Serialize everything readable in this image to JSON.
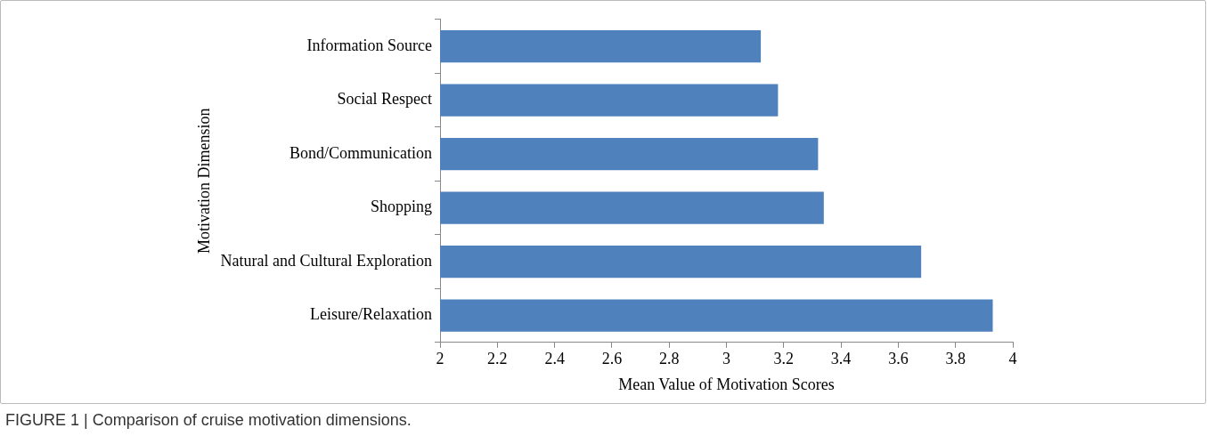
{
  "chart_data": {
    "type": "bar",
    "orientation": "horizontal",
    "xlabel": "Mean Value of Motivation Scores",
    "ylabel": "Motivation Dimension",
    "categories": [
      "Information Source",
      "Social Respect",
      "Bond/Communication",
      "Shopping",
      "Natural and Cultural Exploration",
      "Leisure/Relaxation"
    ],
    "values": [
      3.12,
      3.18,
      3.32,
      3.34,
      3.68,
      3.93
    ],
    "color": "#4f81bd",
    "xlim": [
      2,
      4
    ],
    "xticks": [
      2,
      2.2,
      2.4,
      2.6,
      2.8,
      3,
      3.2,
      3.4,
      3.6,
      3.8,
      4
    ],
    "grid": false,
    "legend": false,
    "annotations": [
      "FIGURE 1 | Comparison of cruise motivation dimensions."
    ]
  }
}
